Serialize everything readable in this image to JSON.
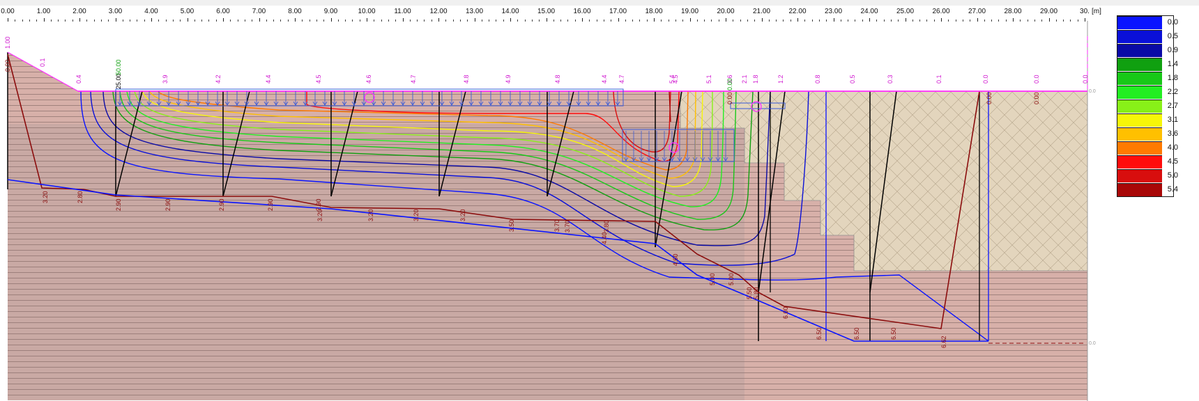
{
  "ruler": {
    "ticks": [
      "0.00",
      "1.00",
      "2.00",
      "3.00",
      "4.00",
      "5.00",
      "6.00",
      "7.00",
      "8.00",
      "9.00",
      "10.00",
      "11.00",
      "12.00",
      "13.00",
      "14.00",
      "15.00",
      "16.00",
      "17.00",
      "18.00",
      "19.00",
      "20.00",
      "21.00",
      "22.00",
      "23.00",
      "24.00",
      "25.00",
      "26.00",
      "27.00",
      "28.00",
      "29.00",
      "30."
    ],
    "unit": "[m]"
  },
  "legend": {
    "items": [
      {
        "label": "0.0",
        "color": "#0a14ff"
      },
      {
        "label": "0.5",
        "color": "#0a10d8"
      },
      {
        "label": "0.9",
        "color": "#0a0aa6"
      },
      {
        "label": "1.4",
        "color": "#10a010"
      },
      {
        "label": "1.8",
        "color": "#18c818"
      },
      {
        "label": "2.2",
        "color": "#22ee22"
      },
      {
        "label": "2.7",
        "color": "#88f018"
      },
      {
        "label": "3.1",
        "color": "#f6f608"
      },
      {
        "label": "3.6",
        "color": "#ffc000"
      },
      {
        "label": "4.0",
        "color": "#ff7a00"
      },
      {
        "label": "4.5",
        "color": "#ff0c0c"
      },
      {
        "label": "5.0",
        "color": "#d80e0e"
      },
      {
        "label": "5.4",
        "color": "#a80808"
      }
    ]
  },
  "colors": {
    "soil_upper": "#d7b0a9",
    "soil_lower": "#c9a9a4",
    "soil_right": "#e3d5bd",
    "hatch": "#8a6e6a",
    "load_line": "#ff2bff",
    "load_arrows": "#3a5bd9",
    "settlement_curve": "#8b0d0d"
  },
  "surface_load_labels": [
    "0.1",
    "0.4",
    "3.9",
    "4.2",
    "4.4",
    "4.5",
    "4.6",
    "4.7",
    "4.8",
    "4.9",
    "4.8",
    "4.4",
    "4.7",
    "5.4",
    "4.5",
    "5.1",
    "3.6",
    "2.1",
    "1.8",
    "1.2",
    "0.8",
    "0.5",
    "0.3",
    "0.1",
    "0.0",
    "0.0",
    "0.0"
  ],
  "left_markers": [
    "1.00",
    "0.00"
  ],
  "top_small_labels": [
    "25.00",
    "50.00",
    "0.00",
    "0.00",
    "0.00",
    "0.00"
  ],
  "depth_labels": [
    "3.20",
    "2.80",
    "2.90",
    "2.90",
    "2.90",
    "2.90",
    "2.90",
    "3.20",
    "3.20",
    "3.20",
    "3.20",
    "3.50",
    "3.70",
    "3.70",
    "3.80",
    "4.40",
    "4.60",
    "5.00",
    "5.00",
    "5.50",
    "5.80",
    "6.00",
    "6.50",
    "6.50",
    "6.50",
    "6.62"
  ],
  "elevation_labels": [
    "0.0",
    "0.0",
    "0.0"
  ]
}
